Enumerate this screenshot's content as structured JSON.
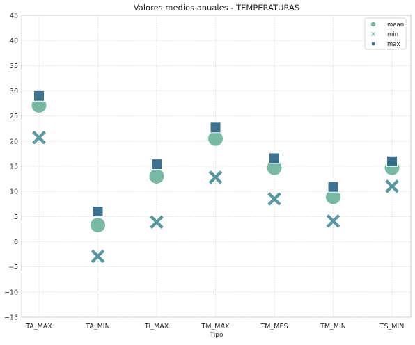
{
  "chart_data": {
    "type": "scatter",
    "title": "Valores medios anuales - TEMPERATURAS",
    "xlabel": "Tipo",
    "ylabel": "",
    "categories": [
      "TA_MAX",
      "TA_MIN",
      "TI_MAX",
      "TM_MAX",
      "TM_MES",
      "TM_MIN",
      "TS_MIN"
    ],
    "ylim": [
      -15,
      45
    ],
    "yticks": [
      -15,
      -10,
      -5,
      0,
      5,
      10,
      15,
      20,
      25,
      30,
      35,
      40,
      45
    ],
    "ytick_labels": [
      "−15",
      "−10",
      "−5",
      "0",
      "5",
      "10",
      "15",
      "20",
      "25",
      "30",
      "35",
      "40",
      "45"
    ],
    "grid": true,
    "legend_position": "top-right",
    "series": [
      {
        "name": "mean",
        "marker": "circle",
        "color": "#6db39a",
        "values": [
          27.1,
          3.3,
          13.0,
          20.5,
          14.7,
          8.9,
          14.7
        ]
      },
      {
        "name": "min",
        "marker": "x",
        "color": "#4a8f99",
        "values": [
          20.7,
          -2.9,
          3.9,
          12.8,
          8.5,
          4.1,
          11.0
        ]
      },
      {
        "name": "max",
        "marker": "square",
        "color": "#2e6787",
        "values": [
          29.0,
          6.0,
          15.4,
          22.7,
          16.6,
          10.9,
          16.0
        ]
      }
    ]
  }
}
